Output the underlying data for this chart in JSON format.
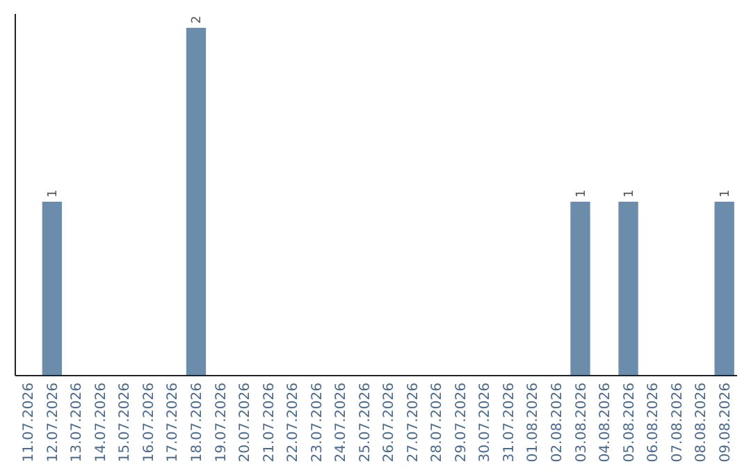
{
  "chart_data": {
    "type": "bar",
    "categories": [
      "11.07.2026",
      "12.07.2026",
      "13.07.2026",
      "14.07.2026",
      "15.07.2026",
      "16.07.2026",
      "17.07.2026",
      "18.07.2026",
      "19.07.2026",
      "20.07.2026",
      "21.07.2026",
      "22.07.2026",
      "23.07.2026",
      "24.07.2026",
      "25.07.2026",
      "26.07.2026",
      "27.07.2026",
      "28.07.2026",
      "29.07.2026",
      "30.07.2026",
      "31.07.2026",
      "01.08.2026",
      "02.08.2026",
      "03.08.2026",
      "04.08.2026",
      "05.08.2026",
      "06.08.2026",
      "07.08.2026",
      "08.08.2026",
      "09.08.2026"
    ],
    "values": [
      0,
      1,
      0,
      0,
      0,
      0,
      0,
      2,
      0,
      0,
      0,
      0,
      0,
      0,
      0,
      0,
      0,
      0,
      0,
      0,
      0,
      0,
      0,
      1,
      0,
      1,
      0,
      0,
      0,
      1
    ],
    "value_labels": [
      null,
      "1",
      null,
      null,
      null,
      null,
      null,
      "2",
      null,
      null,
      null,
      null,
      null,
      null,
      null,
      null,
      null,
      null,
      null,
      null,
      null,
      null,
      null,
      "1",
      null,
      "1",
      null,
      null,
      null,
      "1"
    ],
    "color": "#6b8cab",
    "tick_labels": "x"
  }
}
